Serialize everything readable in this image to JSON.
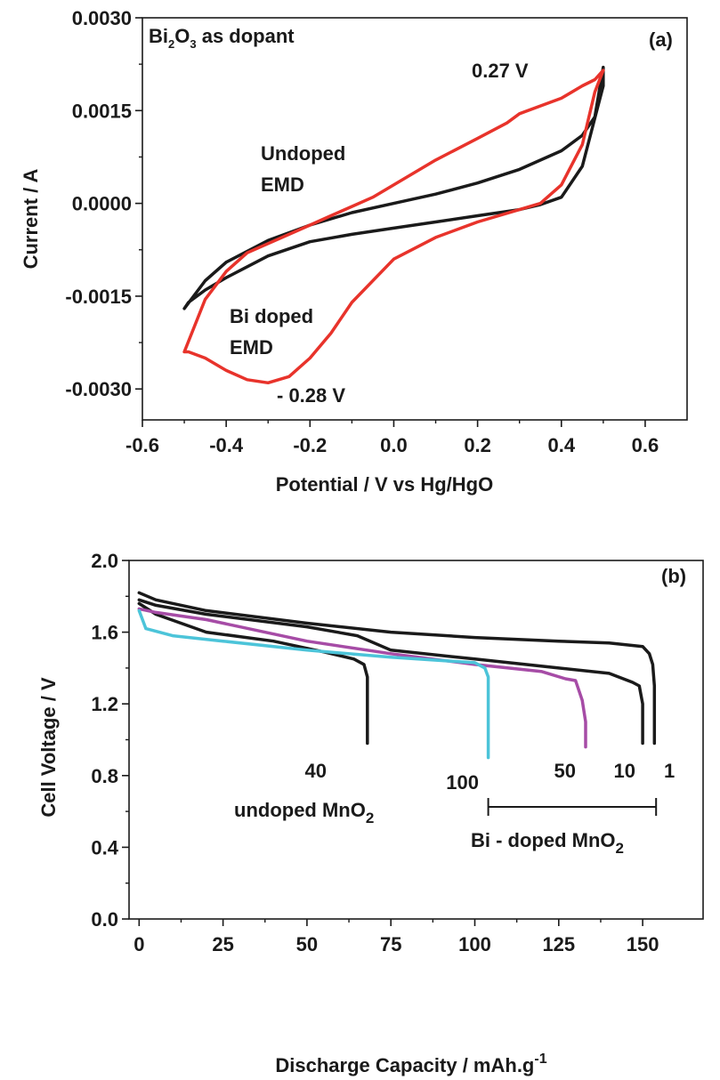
{
  "chart_data": [
    {
      "type": "line",
      "panel_label": "(a)",
      "xlabel": "Potential / V vs Hg/HgO",
      "ylabel": "Current / A",
      "xlim": [
        -0.6,
        0.7
      ],
      "ylim": [
        -0.0035,
        0.003
      ],
      "xticks": [
        -0.6,
        -0.4,
        -0.2,
        0.0,
        0.2,
        0.4,
        0.6
      ],
      "xtick_labels": [
        "-0.6",
        "-0.4",
        "-0.2",
        "0.0",
        "0.2",
        "0.4",
        "0.6"
      ],
      "yticks": [
        0.003,
        0.0015,
        0.0,
        -0.0015,
        -0.003
      ],
      "ytick_labels": [
        "0.0030",
        "0.0015",
        "0.0000",
        "-0.0015",
        "-0.0030"
      ],
      "annotations": {
        "dopant_main": "Bi",
        "dopant_sub1": "2",
        "dopant_mid": "O",
        "dopant_sub2": "3",
        "dopant_rest": " as dopant",
        "peak_anodic": "0.27 V",
        "peak_cathodic": "- 0.28 V",
        "undoped_line1": "Undoped",
        "undoped_line2": "EMD",
        "doped_line1": "Bi doped",
        "doped_line2": "EMD"
      },
      "series": [
        {
          "color": "#1a1a1a",
          "x": [
            -0.5,
            -0.45,
            -0.4,
            -0.3,
            -0.2,
            -0.1,
            0.0,
            0.1,
            0.2,
            0.3,
            0.4,
            0.45,
            0.48,
            0.5,
            0.5,
            0.45,
            0.4,
            0.35,
            0.3,
            0.2,
            0.1,
            0.0,
            -0.1,
            -0.2,
            -0.3,
            -0.4,
            -0.45,
            -0.49,
            -0.5
          ],
          "y": [
            -0.0017,
            -0.00125,
            -0.00095,
            -0.0006,
            -0.00035,
            -0.00015,
            0.0,
            0.00015,
            0.00033,
            0.00055,
            0.00085,
            0.0011,
            0.0014,
            0.0022,
            0.0019,
            0.0006,
            0.0001,
            -2e-05,
            -0.0001,
            -0.0002,
            -0.0003,
            -0.0004,
            -0.0005,
            -0.00062,
            -0.00085,
            -0.0012,
            -0.0014,
            -0.0016,
            -0.0017
          ]
        },
        {
          "color": "#e8332b",
          "x": [
            -0.5,
            -0.45,
            -0.4,
            -0.35,
            -0.3,
            -0.25,
            -0.2,
            -0.15,
            -0.1,
            -0.05,
            0.0,
            0.1,
            0.2,
            0.27,
            0.3,
            0.4,
            0.45,
            0.48,
            0.5,
            0.48,
            0.45,
            0.4,
            0.35,
            0.3,
            0.2,
            0.1,
            0.0,
            -0.1,
            -0.15,
            -0.2,
            -0.25,
            -0.3,
            -0.35,
            -0.4,
            -0.45,
            -0.49,
            -0.5
          ],
          "y": [
            -0.0024,
            -0.00155,
            -0.0011,
            -0.0008,
            -0.00065,
            -0.0005,
            -0.00035,
            -0.0002,
            -5e-05,
            0.0001,
            0.0003,
            0.0007,
            0.00105,
            0.0013,
            0.00145,
            0.0017,
            0.0019,
            0.002,
            0.00215,
            0.0018,
            0.00095,
            0.0003,
            0.0,
            -0.0001,
            -0.0003,
            -0.00055,
            -0.0009,
            -0.0016,
            -0.0021,
            -0.0025,
            -0.0028,
            -0.0029,
            -0.00285,
            -0.0027,
            -0.0025,
            -0.0024,
            -0.0024
          ]
        }
      ]
    },
    {
      "type": "line",
      "panel_label": "(b)",
      "xlabel_main": "Discharge Capacity / mAh.g",
      "xlabel_sup": "-1",
      "ylabel": "Cell Voltage / V",
      "xlim": [
        -3,
        168
      ],
      "ylim": [
        0.0,
        2.0
      ],
      "xticks": [
        0,
        25,
        50,
        75,
        100,
        125,
        150
      ],
      "xtick_labels": [
        "0",
        "25",
        "50",
        "75",
        "100",
        "125",
        "150"
      ],
      "yticks": [
        0.0,
        0.4,
        0.8,
        1.2,
        1.6,
        2.0
      ],
      "ytick_labels": [
        "0.0",
        "0.4",
        "0.8",
        "1.2",
        "1.6",
        "2.0"
      ],
      "annotations": {
        "undoped_main": "undoped MnO",
        "undoped_sub": "2",
        "doped_main": "Bi - doped MnO",
        "doped_sub": "2",
        "bracket_x": [
          104,
          154
        ]
      },
      "series": [
        {
          "name": "1",
          "color": "#1a1a1a",
          "x": [
            0,
            5,
            20,
            50,
            75,
            100,
            125,
            140,
            150,
            152,
            153,
            153.5,
            153.5
          ],
          "y": [
            1.82,
            1.78,
            1.72,
            1.65,
            1.6,
            1.57,
            1.55,
            1.54,
            1.52,
            1.48,
            1.42,
            1.3,
            0.98
          ]
        },
        {
          "name": "10",
          "color": "#1a1a1a",
          "x": [
            0,
            5,
            20,
            50,
            65,
            75,
            100,
            125,
            140,
            147,
            149,
            150,
            150
          ],
          "y": [
            1.78,
            1.75,
            1.7,
            1.63,
            1.58,
            1.5,
            1.45,
            1.4,
            1.37,
            1.32,
            1.3,
            1.2,
            0.98
          ]
        },
        {
          "name": "40",
          "color": "#1a1a1a",
          "x": [
            0,
            5,
            20,
            40,
            55,
            64,
            67,
            68,
            68
          ],
          "y": [
            1.76,
            1.7,
            1.6,
            1.55,
            1.49,
            1.45,
            1.42,
            1.35,
            0.98
          ]
        },
        {
          "name": "50",
          "color": "#a64ca6",
          "x": [
            0,
            5,
            20,
            50,
            75,
            100,
            120,
            127,
            130,
            132,
            133,
            133
          ],
          "y": [
            1.73,
            1.71,
            1.67,
            1.55,
            1.48,
            1.42,
            1.38,
            1.34,
            1.33,
            1.22,
            1.1,
            0.96
          ]
        },
        {
          "name": "100",
          "color": "#4cc4d9",
          "x": [
            0,
            2,
            10,
            25,
            50,
            75,
            100,
            103,
            104,
            104
          ],
          "y": [
            1.72,
            1.62,
            1.58,
            1.55,
            1.5,
            1.46,
            1.43,
            1.4,
            1.35,
            0.9
          ]
        }
      ]
    }
  ]
}
